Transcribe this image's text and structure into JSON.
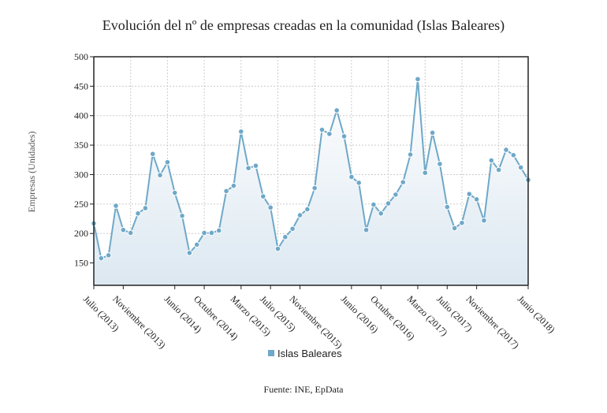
{
  "chart_data": {
    "type": "line",
    "title": "Evolución del nº de empresas creadas en la comunidad (Islas Baleares)",
    "y_label": "Empresas (Unidades)",
    "source": "Fuente: INE, EpData",
    "categories": [
      "Julio (2013)",
      null,
      null,
      null,
      "Noviembre (2013)",
      null,
      null,
      null,
      null,
      null,
      null,
      "Junio (2014)",
      null,
      null,
      null,
      "Octubre (2014)",
      null,
      null,
      null,
      null,
      "Marzo (2015)",
      null,
      null,
      null,
      "Julio (2015)",
      null,
      null,
      null,
      "Noviembre (2015)",
      null,
      null,
      null,
      null,
      null,
      null,
      "Junio (2016)",
      null,
      null,
      null,
      "Octubre (2016)",
      null,
      null,
      null,
      null,
      "Marzo (2017)",
      null,
      null,
      null,
      "Julio (2017)",
      null,
      null,
      null,
      "Noviembre (2017)",
      null,
      null,
      null,
      null,
      null,
      null,
      "Junio (2018)"
    ],
    "series": [
      {
        "name": "Islas Baleares",
        "color": "#6fa8c8",
        "values": [
          217,
          158,
          163,
          247,
          206,
          201,
          234,
          243,
          335,
          299,
          321,
          269,
          230,
          167,
          181,
          201,
          201,
          205,
          272,
          281,
          373,
          311,
          315,
          263,
          244,
          174,
          194,
          208,
          231,
          241,
          277,
          376,
          369,
          409,
          365,
          296,
          286,
          206,
          249,
          234,
          251,
          266,
          287,
          334,
          462,
          303,
          371,
          318,
          245,
          209,
          218,
          267,
          258,
          222,
          324,
          308,
          342,
          333,
          312,
          291
        ]
      }
    ],
    "ylim": [
      112,
      500
    ],
    "yticks": [
      150,
      200,
      250,
      300,
      350,
      400,
      450,
      500
    ],
    "grid": true
  }
}
